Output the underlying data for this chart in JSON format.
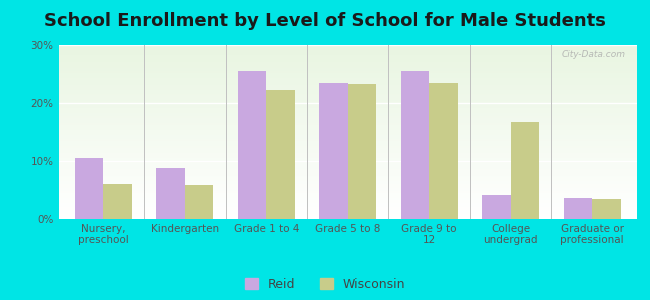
{
  "title": "School Enrollment by Level of School for Male Students",
  "categories": [
    "Nursery,\npreschool",
    "Kindergarten",
    "Grade 1 to 4",
    "Grade 5 to 8",
    "Grade 9 to\n12",
    "College\nundergrad",
    "Graduate or\nprofessional"
  ],
  "reid_values": [
    10.5,
    8.8,
    25.5,
    23.5,
    25.5,
    4.2,
    3.7
  ],
  "wisconsin_values": [
    6.0,
    5.8,
    22.3,
    23.2,
    23.5,
    16.8,
    3.5
  ],
  "reid_color": "#c9a8e0",
  "wisconsin_color": "#c8cc8a",
  "background_color": "#00e5e5",
  "ylim": [
    0,
    30
  ],
  "yticks": [
    0,
    10,
    20,
    30
  ],
  "ytick_labels": [
    "0%",
    "10%",
    "20%",
    "30%"
  ],
  "bar_width": 0.35,
  "title_fontsize": 13,
  "tick_fontsize": 7.5,
  "legend_fontsize": 9,
  "watermark": "City-Data.com"
}
